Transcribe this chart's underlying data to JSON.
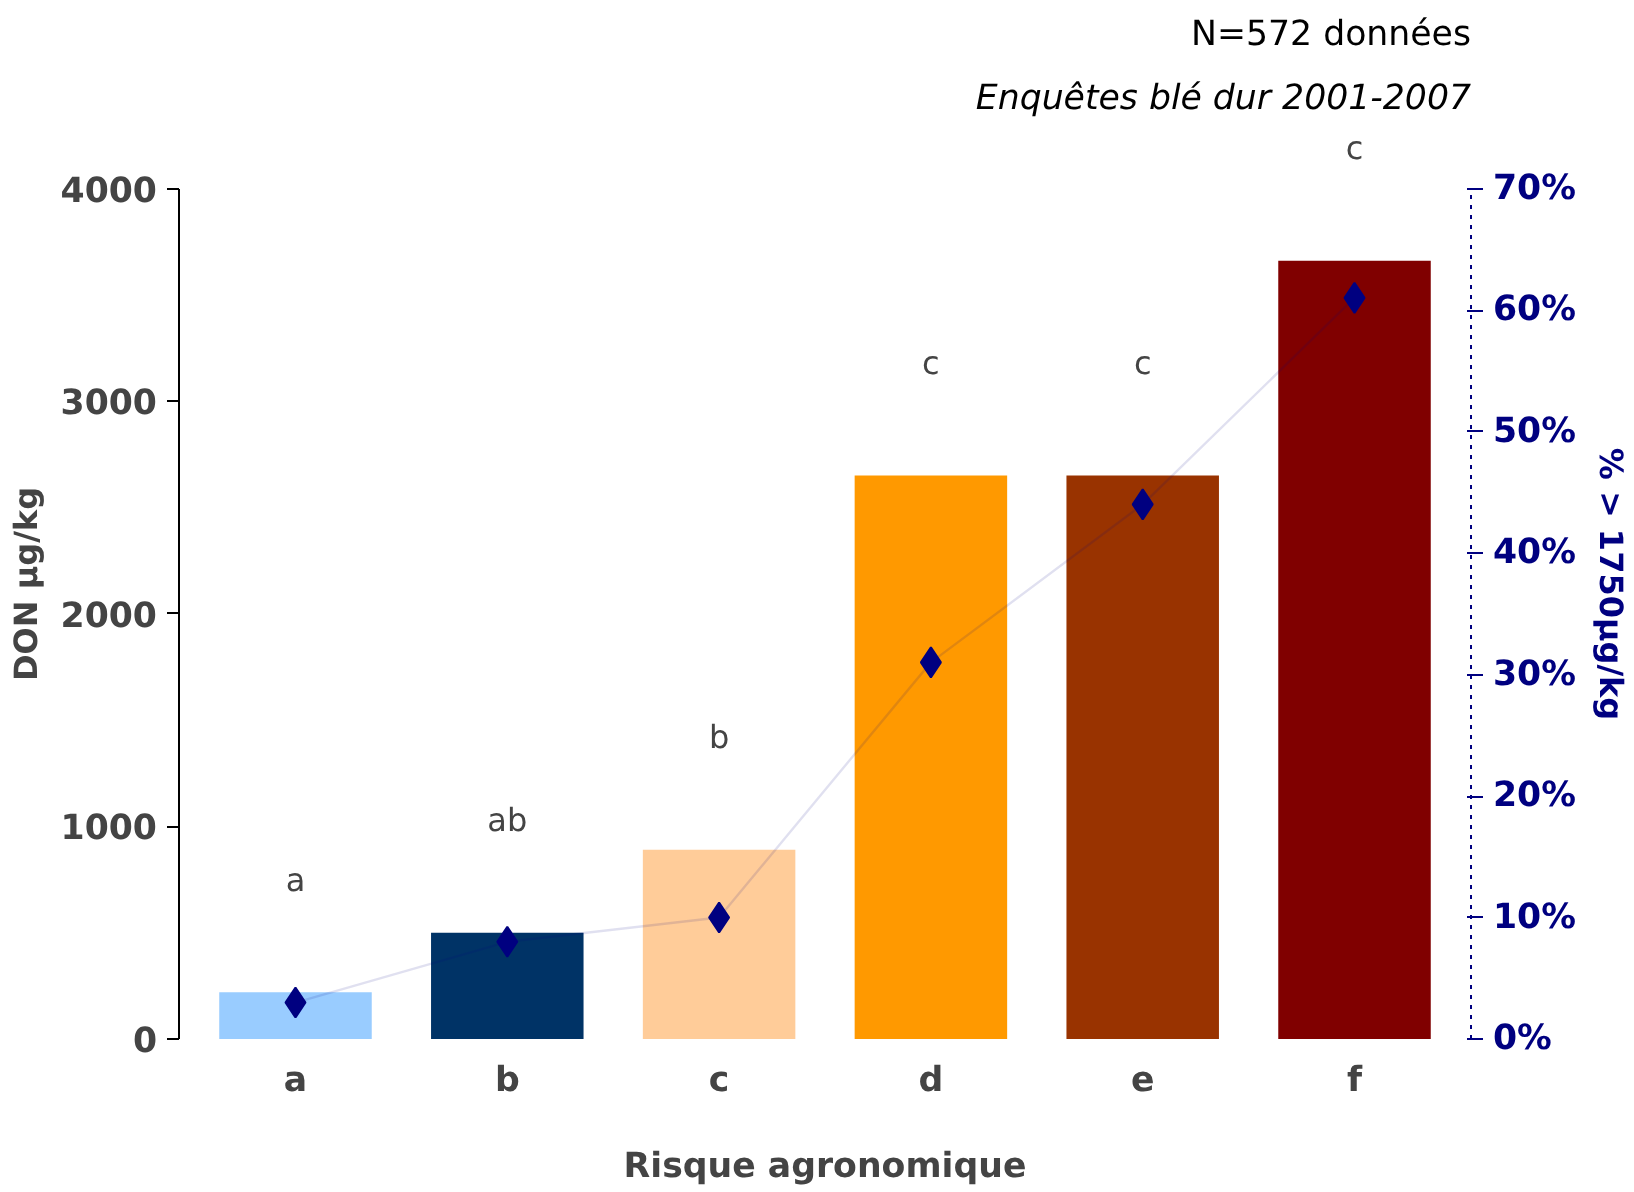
{
  "chart_data": {
    "type": "bar",
    "title": "N=572 données",
    "subtitle": "Enquêtes blé dur 2001-2007",
    "xlabel": "Risque agronomique",
    "ylabel": "DON µg/kg",
    "y2label": "% > 1750µg/kg",
    "categories": [
      "a",
      "b",
      "c",
      "d",
      "e",
      "f"
    ],
    "series": [
      {
        "colors": [
          "#99ccff",
          "#003366",
          "#ffcc99",
          "#ff9900",
          "#993300",
          "#800000"
        ],
        "values": [
          220,
          500,
          890,
          2650,
          2650,
          3660
        ]
      },
      {
        "type": "line",
        "axis": "y2",
        "color": "#000080",
        "marker": "diamond",
        "values": [
          3,
          8,
          10,
          31,
          44,
          61
        ]
      }
    ],
    "ylim": [
      0,
      4000
    ],
    "yticks": [
      0,
      1000,
      2000,
      3000,
      4000
    ],
    "y2lim": [
      0,
      70
    ],
    "y2ticks": [
      {
        "value": 0,
        "label": "0%"
      },
      {
        "value": 10,
        "label": "10%"
      },
      {
        "value": 20,
        "label": "20%"
      },
      {
        "value": 30,
        "label": "30%"
      },
      {
        "value": 40,
        "label": "40%"
      },
      {
        "value": 50,
        "label": "50%"
      },
      {
        "value": 60,
        "label": "60%"
      },
      {
        "value": 70,
        "label": "70%"
      }
    ],
    "annotations": [
      "a",
      "ab",
      "b",
      "c",
      "c",
      "c"
    ]
  }
}
